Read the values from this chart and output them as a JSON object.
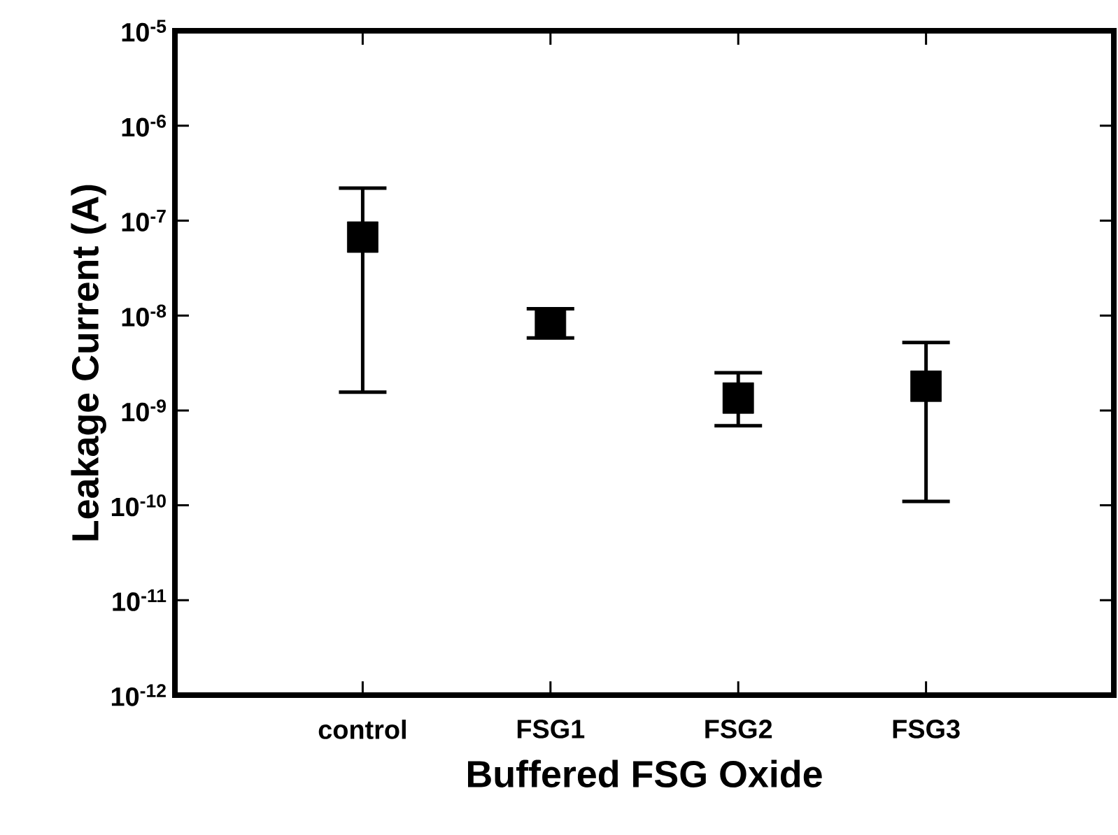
{
  "chart_data": {
    "type": "scatter",
    "xlabel": "Buffered FSG Oxide",
    "ylabel": "Leakage Current (A)",
    "categories": [
      "control",
      "FSG1",
      "FSG2",
      "FSG3"
    ],
    "series": [
      {
        "color": "#000000",
        "values": [
          6.7e-08,
          8.2e-09,
          1.35e-09,
          1.8e-09
        ],
        "errors": [
          [
            1.56e-09,
            2.2e-07
          ],
          [
            5.8e-09,
            1.18e-08
          ],
          [
            6.9e-10,
            2.5e-09
          ],
          [
            1.1e-10,
            5.2e-09
          ]
        ]
      }
    ],
    "log": "y",
    "ylim": [
      1e-12,
      1e-05
    ],
    "yticks": [
      {
        "value": 1e-12,
        "label": "10$^{-12}$"
      },
      {
        "value": 1e-11,
        "label": "10$^{-11}$"
      },
      {
        "value": 1e-10,
        "label": "10$^{-10}$"
      },
      {
        "value": 1e-09,
        "label": "10$^{-9}$"
      },
      {
        "value": 1e-08,
        "label": "10$^{-8}$"
      },
      {
        "value": 1e-07,
        "label": "10$^{-7}$"
      },
      {
        "value": 1e-06,
        "label": "10$^{-6}$"
      },
      {
        "value": 1e-05,
        "label": "10$^{-5}$"
      }
    ],
    "marker": "square"
  }
}
